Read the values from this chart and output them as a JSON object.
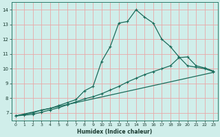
{
  "title": "",
  "xlabel": "Humidex (Indice chaleur)",
  "ylabel": "",
  "xlim": [
    -0.5,
    23.5
  ],
  "ylim": [
    6.5,
    14.5
  ],
  "xticks": [
    0,
    1,
    2,
    3,
    4,
    5,
    6,
    7,
    8,
    9,
    10,
    11,
    12,
    13,
    14,
    15,
    16,
    17,
    18,
    19,
    20,
    21,
    22,
    23
  ],
  "yticks": [
    7,
    8,
    9,
    10,
    11,
    12,
    13,
    14
  ],
  "background_color": "#d0eeea",
  "grid_color": "#e8a8a8",
  "line_color": "#1a6b5a",
  "curve1_x": [
    0,
    1,
    2,
    3,
    4,
    5,
    6,
    7,
    8,
    9,
    10,
    11,
    12,
    13,
    14,
    15,
    16,
    17,
    18,
    19,
    20,
    21,
    22,
    23
  ],
  "curve1_y": [
    6.8,
    6.9,
    7.0,
    7.2,
    7.3,
    7.5,
    7.7,
    7.9,
    8.5,
    8.8,
    10.5,
    11.5,
    13.1,
    13.2,
    14.0,
    13.5,
    13.1,
    12.0,
    11.5,
    10.8,
    10.2,
    10.1,
    10.0,
    9.8
  ],
  "curve2_x": [
    0,
    1,
    2,
    3,
    4,
    5,
    6,
    7,
    8,
    9,
    10,
    11,
    12,
    13,
    14,
    15,
    16,
    17,
    18,
    19,
    20,
    21,
    22,
    23
  ],
  "curve2_y": [
    6.8,
    6.85,
    6.9,
    7.05,
    7.2,
    7.35,
    7.55,
    7.75,
    7.95,
    8.1,
    8.3,
    8.55,
    8.8,
    9.1,
    9.35,
    9.6,
    9.8,
    10.0,
    10.2,
    10.75,
    10.8,
    10.2,
    10.05,
    9.85
  ],
  "curve3_x": [
    0,
    23
  ],
  "curve3_y": [
    6.8,
    9.75
  ]
}
